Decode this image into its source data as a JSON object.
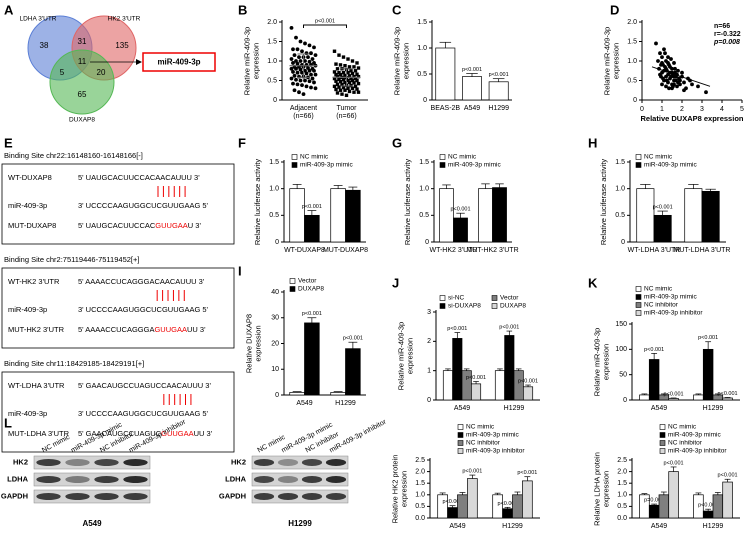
{
  "venn": {
    "label": "A",
    "sets": [
      "LDHA 3'UTR",
      "HK2 3'UTR",
      "DUXAP8"
    ],
    "regions": [
      38,
      31,
      135,
      11,
      5,
      20,
      65
    ],
    "result": "miR-409-3p"
  },
  "sequences": {
    "label": "E",
    "sites": [
      {
        "title": "Binding Site chr22:16148160-16148166[-]",
        "rows": [
          {
            "name": "WT-DUXAP8",
            "seq": [
              "5' UAUGCACUUCCACAACAUUU 3'"
            ]
          },
          {
            "name": "miR-409-3p",
            "seq": [
              "3' UCCCCAAGUGGCUCGUUGAAG 5'"
            ]
          },
          {
            "name": "MUT-DUXAP8",
            "seq": [
              "5' UAUGCACUUCCAC",
              "GUUGAA",
              "U 3'"
            ]
          }
        ]
      },
      {
        "title": "Binding Site chr2:75119446-75119452[+]",
        "rows": [
          {
            "name": "WT-HK2 3'UTR",
            "seq": [
              "5' AAAACCUCAGGGACAACAUUU 3'"
            ]
          },
          {
            "name": "miR-409-3p",
            "seq": [
              "3' UCCCCAAGUGGCUCGUUGAAG 5'"
            ]
          },
          {
            "name": "MUT-HK2 3'UTR",
            "seq": [
              "5' AAAACCUCAGGGA",
              "GUUGAA",
              "UU 3'"
            ]
          }
        ]
      },
      {
        "title": "Binding Site chr11:18429185-18429191[+]",
        "rows": [
          {
            "name": "WT-LDHA 3'UTR",
            "seq": [
              "5' GAACAUGCCUAGUCCAACAUUU 3'"
            ]
          },
          {
            "name": "miR-409-3p",
            "seq": [
              "3' UCCCCAAGUGGCUCGUUGAAG 5'"
            ]
          },
          {
            "name": "MUT-LDHA 3'UTR",
            "seq": [
              "5' GAACAUGCCUAGUC",
              "GUUGAA",
              "UU 3'"
            ]
          }
        ]
      }
    ]
  },
  "western": {
    "label": "L",
    "lanes": [
      "NC mimic",
      "miR-409-3p mimic",
      "NC inhibitor",
      "miR-409-3p inhibitor"
    ],
    "rows": [
      "HK2",
      "LDHA",
      "GAPDH"
    ],
    "blots": [
      "A549",
      "H1299"
    ]
  },
  "chart_data": [
    {
      "type": "strip",
      "label": "B",
      "ylabel": [
        "Relative miR-409-3p",
        "expression"
      ],
      "categories": [
        "Adjacent",
        "Tumor"
      ],
      "sublabels": [
        "(n=66)",
        "(n=66)"
      ],
      "groups": [
        {
          "marker": "circle",
          "mean": 0.88,
          "sd": 0.3,
          "values": [
            1.85,
            1.6,
            1.5,
            1.45,
            1.4,
            1.35,
            1.3,
            1.3,
            1.25,
            1.2,
            1.2,
            1.15,
            1.15,
            1.1,
            1.1,
            1.1,
            1.05,
            1.05,
            1.0,
            1.0,
            1.0,
            0.98,
            0.95,
            0.95,
            0.93,
            0.9,
            0.9,
            0.9,
            0.88,
            0.85,
            0.85,
            0.85,
            0.82,
            0.8,
            0.8,
            0.8,
            0.78,
            0.75,
            0.75,
            0.75,
            0.72,
            0.7,
            0.7,
            0.68,
            0.65,
            0.65,
            0.62,
            0.6,
            0.6,
            0.58,
            0.55,
            0.55,
            0.52,
            0.5,
            0.5,
            0.48,
            0.45,
            0.42,
            0.4,
            0.38,
            0.35,
            0.32,
            0.3,
            0.25,
            0.2,
            0.15
          ]
        },
        {
          "marker": "square",
          "mean": 0.58,
          "sd": 0.22,
          "values": [
            1.25,
            1.15,
            1.1,
            1.05,
            1.0,
            0.95,
            0.92,
            0.9,
            0.88,
            0.85,
            0.85,
            0.82,
            0.8,
            0.8,
            0.78,
            0.75,
            0.75,
            0.72,
            0.7,
            0.7,
            0.7,
            0.68,
            0.66,
            0.65,
            0.65,
            0.63,
            0.62,
            0.6,
            0.6,
            0.6,
            0.58,
            0.57,
            0.55,
            0.55,
            0.55,
            0.53,
            0.52,
            0.5,
            0.5,
            0.5,
            0.48,
            0.47,
            0.45,
            0.45,
            0.44,
            0.42,
            0.4,
            0.4,
            0.38,
            0.37,
            0.35,
            0.35,
            0.33,
            0.32,
            0.3,
            0.3,
            0.28,
            0.27,
            0.25,
            0.25,
            0.22,
            0.2,
            0.2,
            0.18,
            0.15,
            0.12
          ]
        }
      ],
      "annotation": "p<0.001",
      "ylim": [
        0,
        2
      ],
      "yticks": [
        0,
        0.5,
        {
          "value": 1,
          "label": "1.0"
        },
        1.5,
        {
          "value": 2,
          "label": "2.0"
        }
      ]
    },
    {
      "type": "bar",
      "label": "C",
      "ylabel": [
        "Relative miR-409-3p",
        "expression"
      ],
      "categories": [
        "BEAS-2B",
        "A549",
        "H1299"
      ],
      "series": [
        {
          "color": "#ffffff",
          "values": [
            1.0,
            0.45,
            0.35
          ],
          "errors": [
            0.11,
            0.06,
            0.06
          ],
          "annotations": [
            null,
            "p<0.001",
            "p<0.001"
          ]
        }
      ],
      "ylim": [
        0,
        1.5
      ],
      "yticks": [
        0,
        0.5,
        {
          "value": 1,
          "label": "1.0"
        },
        1.5
      ]
    },
    {
      "type": "scatter",
      "label": "D",
      "ylabel": [
        "Relative miR-409-3p",
        "expression"
      ],
      "xlabel": "Relative DUXAP8 expression",
      "x": [
        0.7,
        0.8,
        0.85,
        0.9,
        0.95,
        1.0,
        1.0,
        1.05,
        1.1,
        1.1,
        1.15,
        1.2,
        1.2,
        1.25,
        1.3,
        1.3,
        1.35,
        1.4,
        1.4,
        1.45,
        1.5,
        1.5,
        1.55,
        1.6,
        1.6,
        1.65,
        1.7,
        1.75,
        1.8,
        1.85,
        1.9,
        2.0,
        2.1,
        2.2,
        2.3,
        2.5,
        2.8,
        3.2,
        1.0,
        1.2,
        1.4,
        1.6,
        1.8,
        0.9,
        1.1,
        1.3,
        1.5,
        1.7,
        1.9,
        2.1,
        1.05,
        1.25,
        1.45,
        1.65,
        0.95,
        1.15,
        1.35,
        1.55,
        1.75,
        2.4,
        1.0,
        1.2,
        1.3,
        1.5,
        1.6,
        2.0
      ],
      "y": [
        1.45,
        1.0,
        0.8,
        1.2,
        0.6,
        1.1,
        0.7,
        0.9,
        1.3,
        0.5,
        0.85,
        1.0,
        0.6,
        0.75,
        1.1,
        0.45,
        0.9,
        0.7,
        0.55,
        1.05,
        0.8,
        0.4,
        0.65,
        0.95,
        0.5,
        0.7,
        0.6,
        0.35,
        0.75,
        0.55,
        0.5,
        0.6,
        0.45,
        0.3,
        0.55,
        0.4,
        0.35,
        0.2,
        0.95,
        0.8,
        0.85,
        0.6,
        0.45,
        0.65,
        0.75,
        0.65,
        0.7,
        0.5,
        0.4,
        0.25,
        0.55,
        0.5,
        0.6,
        0.8,
        0.9,
        1.2,
        0.3,
        0.35,
        0.65,
        0.5,
        0.4,
        0.35,
        0.95,
        0.3,
        0.4,
        0.7
      ],
      "fit": {
        "x": [
          0.5,
          3.4
        ],
        "y": [
          0.85,
          0.35
        ]
      },
      "stats": [
        "n=66",
        "r=-0.322",
        "p=0.008"
      ],
      "xlim": [
        0,
        5
      ],
      "xticks": [
        0,
        1,
        2,
        3,
        4,
        5
      ],
      "ylim": [
        0,
        2
      ],
      "yticks": [
        0,
        0.5,
        {
          "value": 1,
          "label": "1.0"
        },
        1.5,
        {
          "value": 2,
          "label": "2.0"
        }
      ]
    },
    {
      "type": "bar",
      "label": "F",
      "ylabel": [
        "Relative luciferase activity"
      ],
      "categories": [
        "WT-DUXAP8",
        "MUT-DUXAP8"
      ],
      "series": [
        {
          "name": "NC mimic",
          "color": "#ffffff",
          "values": [
            1.0,
            1.0
          ],
          "errors": [
            0.08,
            0.06
          ]
        },
        {
          "name": "miR-409-3p mimic",
          "color": "#000000",
          "values": [
            0.5,
            0.97
          ],
          "errors": [
            0.09,
            0.06
          ],
          "annotations": [
            "p<0.001",
            null
          ]
        }
      ],
      "ylim": [
        0,
        1.5
      ],
      "yticks": [
        0,
        0.5,
        {
          "value": 1,
          "label": "1.0"
        },
        1.5
      ]
    },
    {
      "type": "bar",
      "label": "G",
      "ylabel": [
        "Relative luciferase activity"
      ],
      "categories": [
        "WT-HK2 3'UTR",
        "MUT-HK2 3'UTR"
      ],
      "series": [
        {
          "name": "NC mimic",
          "color": "#ffffff",
          "values": [
            1.0,
            1.0
          ],
          "errors": [
            0.07,
            0.09
          ]
        },
        {
          "name": "miR-409-3p mimic",
          "color": "#000000",
          "values": [
            0.45,
            1.02
          ],
          "errors": [
            0.09,
            0.07
          ],
          "annotations": [
            "p<0.001",
            null
          ]
        }
      ],
      "ylim": [
        0,
        1.5
      ],
      "yticks": [
        0,
        0.5,
        {
          "value": 1,
          "label": "1.0"
        },
        1.5
      ]
    },
    {
      "type": "bar",
      "label": "H",
      "ylabel": [
        "Relative luciferase activity"
      ],
      "categories": [
        "WT-LDHA 3'UTR",
        "MUT-LDHA 3'UTR"
      ],
      "series": [
        {
          "name": "NC mimic",
          "color": "#ffffff",
          "values": [
            1.0,
            1.0
          ],
          "errors": [
            0.08,
            0.08
          ]
        },
        {
          "name": "miR-409-3p mimic",
          "color": "#000000",
          "values": [
            0.5,
            0.95
          ],
          "errors": [
            0.08,
            0.04
          ],
          "annotations": [
            "p<0.001",
            null
          ]
        }
      ],
      "ylim": [
        0,
        1.5
      ],
      "yticks": [
        0,
        0.5,
        {
          "value": 1,
          "label": "1.0"
        },
        1.5
      ]
    },
    {
      "type": "bar",
      "label": "I",
      "ylabel": [
        "Relative DUXAP8",
        "expression"
      ],
      "categories": [
        "A549",
        "H1299"
      ],
      "series": [
        {
          "name": "Vector",
          "color": "#ffffff",
          "values": [
            1,
            1
          ],
          "errors": [
            0.3,
            0.3
          ]
        },
        {
          "name": "DUXAP8",
          "color": "#000000",
          "values": [
            28,
            18
          ],
          "errors": [
            2,
            2.5
          ],
          "annotations": [
            "p<0.001",
            "p<0.001"
          ]
        }
      ],
      "ylim": [
        0,
        40
      ],
      "yticks": [
        0,
        10,
        20,
        30,
        40
      ]
    },
    {
      "type": "bar",
      "label": "J",
      "ylabel": [
        "Relative miR-409-3p",
        "expression"
      ],
      "categories": [
        "A549",
        "H1299"
      ],
      "series": [
        {
          "name": "si-NC",
          "color": "#ffffff",
          "values": [
            1.0,
            1.0
          ],
          "errors": [
            0.06,
            0.06
          ]
        },
        {
          "name": "si-DUXAP8",
          "color": "#000000",
          "values": [
            2.1,
            2.2
          ],
          "errors": [
            0.2,
            0.15
          ],
          "annotations": [
            "p<0.001",
            "p<0.001"
          ]
        },
        {
          "name": "Vector",
          "color": "#7f7f7f",
          "values": [
            1.0,
            1.0
          ],
          "errors": [
            0.06,
            0.06
          ]
        },
        {
          "name": "DUXAP8",
          "color": "#d9d9d9",
          "values": [
            0.55,
            0.45
          ],
          "errors": [
            0.08,
            0.06
          ],
          "annotations": [
            "p<0.001",
            "p<0.001"
          ]
        }
      ],
      "ylim": [
        0,
        3
      ],
      "yticks": [
        0,
        1,
        2,
        3
      ]
    },
    {
      "type": "bar",
      "label": "K",
      "ylabel": [
        "Relative miR-409-3p",
        "expression"
      ],
      "categories": [
        "A549",
        "H1299"
      ],
      "series": [
        {
          "name": "NC mimic",
          "color": "#ffffff",
          "values": [
            10,
            10
          ],
          "errors": [
            2,
            2
          ]
        },
        {
          "name": "miR-409-3p mimic",
          "color": "#000000",
          "values": [
            80,
            100
          ],
          "errors": [
            12,
            15
          ],
          "annotations": [
            "p<0.001",
            "p<0.001"
          ]
        },
        {
          "name": "NC inhibitor",
          "color": "#7f7f7f",
          "values": [
            10,
            10
          ],
          "errors": [
            2,
            2
          ]
        },
        {
          "name": "miR-409-3p inhibitor",
          "color": "#d9d9d9",
          "values": [
            3,
            4
          ],
          "errors": [
            1,
            1
          ],
          "annotations": [
            "p<0.001",
            "p<0.001"
          ]
        }
      ],
      "ylim": [
        0,
        150
      ],
      "yticks": [
        0,
        50,
        100,
        150
      ]
    },
    {
      "type": "bar",
      "ylabel": [
        "Relative HK2 protein",
        "expression"
      ],
      "categories": [
        "A549",
        "H1299"
      ],
      "series": [
        {
          "name": "NC mimic",
          "color": "#ffffff",
          "values": [
            1.0,
            1.0
          ],
          "errors": [
            0.08,
            0.07
          ]
        },
        {
          "name": "miR-409-3p mimic",
          "color": "#000000",
          "values": [
            0.45,
            0.4
          ],
          "errors": [
            0.08,
            0.06
          ],
          "annotations": [
            "p<0.001",
            "p<0.001"
          ]
        },
        {
          "name": "NC inhibitor",
          "color": "#7f7f7f",
          "values": [
            1.0,
            1.0
          ],
          "errors": [
            0.1,
            0.12
          ]
        },
        {
          "name": "miR-409-3p inhibitor",
          "color": "#d9d9d9",
          "values": [
            1.7,
            1.6
          ],
          "errors": [
            0.15,
            0.18
          ],
          "annotations": [
            "p<0.001",
            "p<0.001"
          ]
        }
      ],
      "ylim": [
        0,
        2.5
      ],
      "yticks": [
        {
          "value": 0,
          "label": "0.0"
        },
        0.5,
        {
          "value": 1,
          "label": "1.0"
        },
        1.5,
        {
          "value": 2,
          "label": "2.0"
        },
        2.5
      ]
    },
    {
      "type": "bar",
      "ylabel": [
        "Relative LDHA protein",
        "expression"
      ],
      "categories": [
        "A549",
        "H1299"
      ],
      "series": [
        {
          "name": "NC mimic",
          "color": "#ffffff",
          "values": [
            1.0,
            1.0
          ],
          "errors": [
            0.05,
            0.08
          ]
        },
        {
          "name": "miR-409-3p mimic",
          "color": "#000000",
          "values": [
            0.55,
            0.3
          ],
          "errors": [
            0.05,
            0.08
          ],
          "annotations": [
            "p=0.002",
            "p<0.001"
          ]
        },
        {
          "name": "NC inhibitor",
          "color": "#7f7f7f",
          "values": [
            1.0,
            1.0
          ],
          "errors": [
            0.12,
            0.1
          ]
        },
        {
          "name": "miR-409-3p inhibitor",
          "color": "#d9d9d9",
          "values": [
            2.0,
            1.55
          ],
          "errors": [
            0.2,
            0.12
          ],
          "annotations": [
            "p<0.001",
            "p<0.001"
          ]
        }
      ],
      "ylim": [
        0,
        2.5
      ],
      "yticks": [
        {
          "value": 0,
          "label": "0.0"
        },
        0.5,
        {
          "value": 1,
          "label": "1.0"
        },
        1.5,
        {
          "value": 2,
          "label": "2.0"
        },
        2.5
      ]
    }
  ]
}
